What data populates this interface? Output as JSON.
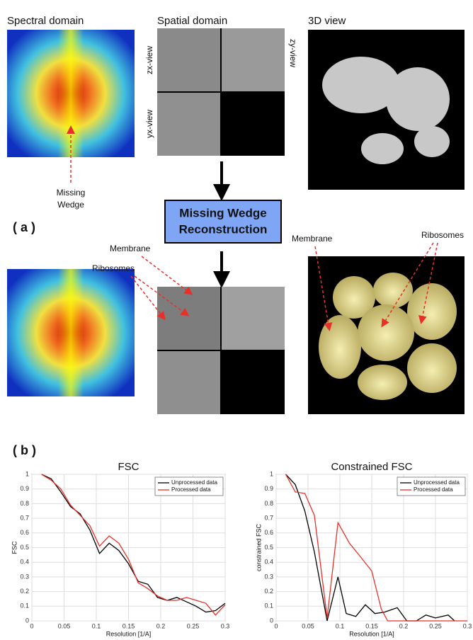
{
  "panel_a": {
    "label": "( a )",
    "columns": [
      "Spectral domain",
      "Spatial domain",
      "3D view"
    ],
    "views": [
      "zx-view",
      "yx-view",
      "zy-view"
    ],
    "wedge_note": [
      "Missing",
      "Wedge"
    ],
    "box": [
      "Missing Wedge",
      "Reconstruction"
    ],
    "annotations": {
      "membrane_left": "Membrane",
      "ribosomes_left": "Ribosomes",
      "membrane_right": "Membrane",
      "ribosomes_right": "Ribosomes"
    }
  },
  "panel_b": {
    "label": "( b )"
  },
  "chart_data": [
    {
      "type": "line",
      "title": "FSC",
      "x_label": "Resolution [1/A]",
      "y_label": "FSC",
      "xlim": [
        0,
        0.3
      ],
      "xticks": [
        0,
        0.05,
        0.1,
        0.15,
        0.2,
        0.25,
        0.3
      ],
      "ylim": [
        0,
        1
      ],
      "yticks": [
        0,
        0.1,
        0.2,
        0.3,
        0.4,
        0.5,
        0.6,
        0.7,
        0.8,
        0.9,
        1
      ],
      "grid": true,
      "legend": "upper-right",
      "series": [
        {
          "name": "Unprocessed data",
          "color": "#000000",
          "x": [
            0.015,
            0.03,
            0.045,
            0.06,
            0.075,
            0.09,
            0.105,
            0.12,
            0.135,
            0.15,
            0.165,
            0.18,
            0.195,
            0.21,
            0.225,
            0.24,
            0.255,
            0.27,
            0.285,
            0.3
          ],
          "values": [
            1,
            0.97,
            0.88,
            0.78,
            0.73,
            0.62,
            0.46,
            0.53,
            0.48,
            0.39,
            0.27,
            0.25,
            0.16,
            0.14,
            0.16,
            0.13,
            0.1,
            0.06,
            0.07,
            0.12
          ]
        },
        {
          "name": "Processed data",
          "color": "#e8302a",
          "x": [
            0.015,
            0.03,
            0.045,
            0.06,
            0.075,
            0.09,
            0.105,
            0.12,
            0.135,
            0.15,
            0.165,
            0.18,
            0.195,
            0.21,
            0.225,
            0.24,
            0.255,
            0.27,
            0.285,
            0.3
          ],
          "values": [
            1,
            0.96,
            0.9,
            0.79,
            0.72,
            0.65,
            0.51,
            0.58,
            0.53,
            0.42,
            0.26,
            0.22,
            0.17,
            0.14,
            0.14,
            0.16,
            0.14,
            0.12,
            0.04,
            0.11
          ]
        }
      ]
    },
    {
      "type": "line",
      "title": "Constrained FSC",
      "x_label": "Resolution [1/A]",
      "y_label": "constrained FSC",
      "xlim": [
        0,
        0.3
      ],
      "xticks": [
        0,
        0.05,
        0.1,
        0.15,
        0.2,
        0.25,
        0.3
      ],
      "ylim": [
        0,
        1
      ],
      "yticks": [
        0,
        0.1,
        0.2,
        0.3,
        0.4,
        0.5,
        0.6,
        0.7,
        0.8,
        0.9,
        1
      ],
      "grid": true,
      "legend": "upper-right",
      "series": [
        {
          "name": "Unprocessed data",
          "color": "#000000",
          "x": [
            0.015,
            0.03,
            0.045,
            0.06,
            0.08,
            0.097,
            0.11,
            0.125,
            0.14,
            0.155,
            0.17,
            0.19,
            0.205,
            0.22,
            0.235,
            0.25,
            0.27,
            0.28
          ],
          "values": [
            1,
            0.93,
            0.75,
            0.47,
            0,
            0.3,
            0.05,
            0.03,
            0.11,
            0.05,
            0.06,
            0.09,
            0,
            0,
            0.04,
            0.02,
            0.04,
            0
          ]
        },
        {
          "name": "Processed data",
          "color": "#e8302a",
          "x": [
            0.015,
            0.03,
            0.045,
            0.06,
            0.08,
            0.097,
            0.115,
            0.13,
            0.15,
            0.165,
            0.175,
            0.3
          ],
          "values": [
            1,
            0.88,
            0.87,
            0.72,
            0.02,
            0.67,
            0.53,
            0.45,
            0.34,
            0.08,
            0,
            0
          ]
        }
      ]
    }
  ]
}
